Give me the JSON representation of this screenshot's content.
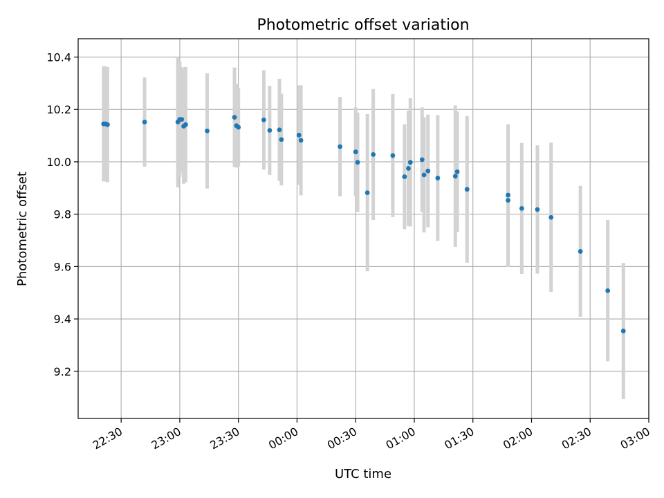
{
  "chart_data": {
    "type": "scatter",
    "title": "Photometric offset variation",
    "xlabel": "UTC time",
    "ylabel": "Photometric offset",
    "xlim": [
      "22:08",
      "03:00"
    ],
    "ylim": [
      9.02,
      10.47
    ],
    "grid": true,
    "xticks": [
      "22:30",
      "23:00",
      "23:30",
      "00:00",
      "00:30",
      "01:00",
      "01:30",
      "02:00",
      "02:30",
      "03:00"
    ],
    "yticks": [
      "9.2",
      "9.4",
      "9.6",
      "9.8",
      "10.0",
      "10.2",
      "10.4"
    ],
    "colors": {
      "point": "#1f77b4",
      "errorbar": "#d3d3d3",
      "grid": "#b0b0b0"
    },
    "series": [
      {
        "x": [
          "22:21",
          "22:22",
          "22:23",
          "22:42",
          "22:59",
          "23:00",
          "23:01",
          "23:02",
          "23:03",
          "23:14",
          "23:28",
          "23:29",
          "23:30",
          "23:43",
          "23:46",
          "23:51",
          "23:52",
          "00:01",
          "00:02",
          "00:22",
          "00:30",
          "00:31",
          "00:36",
          "00:39",
          "00:49",
          "00:55",
          "00:57",
          "00:58",
          "01:04",
          "01:05",
          "01:07",
          "01:12",
          "01:21",
          "01:22",
          "01:27",
          "01:48",
          "01:48",
          "01:55",
          "02:03",
          "02:10",
          "02:25",
          "02:39",
          "02:47"
        ],
        "y": [
          10.145,
          10.145,
          10.142,
          10.152,
          10.152,
          10.162,
          10.162,
          10.136,
          10.142,
          10.118,
          10.17,
          10.138,
          10.132,
          10.16,
          10.12,
          10.122,
          10.085,
          10.102,
          10.082,
          10.058,
          10.038,
          9.998,
          9.882,
          10.028,
          10.024,
          9.943,
          9.975,
          9.998,
          10.008,
          9.95,
          9.965,
          9.938,
          9.945,
          9.962,
          9.895,
          9.853,
          9.873,
          9.822,
          9.818,
          9.788,
          9.658,
          9.508,
          9.354
        ],
        "yerr": [
          0.22,
          0.22,
          0.22,
          0.17,
          0.25,
          0.22,
          0.2,
          0.22,
          0.22,
          0.22,
          0.19,
          0.16,
          0.15,
          0.19,
          0.17,
          0.195,
          0.175,
          0.19,
          0.21,
          0.19,
          0.17,
          0.19,
          0.3,
          0.25,
          0.235,
          0.2,
          0.22,
          0.245,
          0.2,
          0.22,
          0.215,
          0.24,
          0.27,
          0.23,
          0.28,
          0.255,
          0.27,
          0.25,
          0.245,
          0.285,
          0.25,
          0.27,
          0.26
        ]
      }
    ]
  }
}
